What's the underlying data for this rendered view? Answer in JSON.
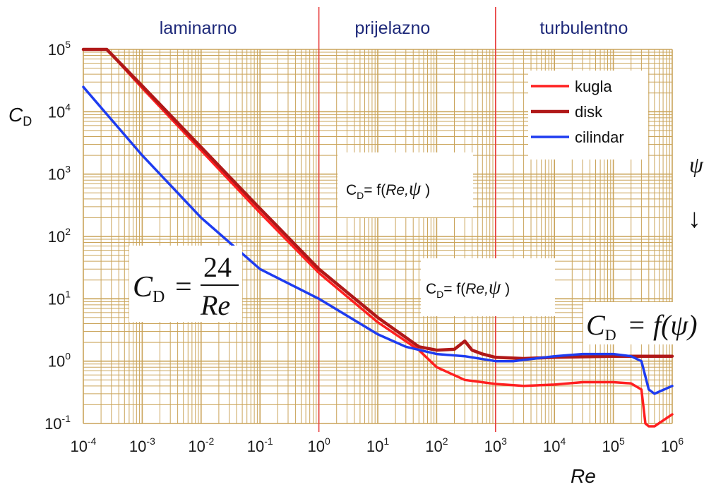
{
  "regions": [
    {
      "label": "laminarno",
      "center_logx": -2.05
    },
    {
      "label": "prijelazno",
      "center_logx": 1.25
    },
    {
      "label": "turbulentno",
      "center_logx": 4.5
    }
  ],
  "annotations": {
    "formula_mid": {
      "prefix": "C",
      "sub": "D",
      "body": "= f(",
      "italic": "Re,",
      "psi": "ψ",
      "close": " )"
    },
    "big_eq_stokes": {
      "lhs": "C",
      "lhs_sub": "D",
      "eq": "=",
      "num": "24",
      "den": "Re"
    },
    "big_eq_psi": {
      "lhs": "C",
      "lhs_sub": "D",
      "eq": "= f",
      "arg": "(ψ)"
    },
    "psi_arrow": {
      "symbol": "ψ",
      "arrow": "↓"
    }
  },
  "chart_data": {
    "type": "line",
    "xlabel": "Re",
    "ylabel": "C",
    "ylabel_sub": "D",
    "x_scale": "log",
    "y_scale": "log",
    "xlim": [
      0.0001,
      1000000
    ],
    "ylim": [
      0.1,
      100000
    ],
    "x_ticks": [
      {
        "base": "10",
        "exp": "-4"
      },
      {
        "base": "10",
        "exp": "-3"
      },
      {
        "base": "10",
        "exp": "-2"
      },
      {
        "base": "10",
        "exp": "-1"
      },
      {
        "base": "10",
        "exp": "0"
      },
      {
        "base": "10",
        "exp": "1"
      },
      {
        "base": "10",
        "exp": "2"
      },
      {
        "base": "10",
        "exp": "3"
      },
      {
        "base": "10",
        "exp": "4"
      },
      {
        "base": "10",
        "exp": "5"
      },
      {
        "base": "10",
        "exp": "6"
      }
    ],
    "y_ticks": [
      {
        "base": "10",
        "exp": "-1"
      },
      {
        "base": "10",
        "exp": "0"
      },
      {
        "base": "10",
        "exp": "1"
      },
      {
        "base": "10",
        "exp": "2"
      },
      {
        "base": "10",
        "exp": "3"
      },
      {
        "base": "10",
        "exp": "4"
      },
      {
        "base": "10",
        "exp": "5"
      }
    ],
    "grid": true,
    "grid_color": "#caa45a",
    "regime_boundaries": [
      1,
      1000
    ],
    "boundary_color": "#e84040",
    "legend_position": "top-right",
    "series": [
      {
        "name": "kugla",
        "color": "#ff2020",
        "width": 3.5,
        "x": [
          0.0001,
          0.00025,
          0.001,
          0.01,
          0.1,
          1,
          10,
          50,
          100,
          300,
          1000,
          3000,
          10000,
          30000,
          100000,
          200000,
          300000,
          350000,
          400000,
          500000,
          1000000
        ],
        "y": [
          120000,
          100000,
          24000,
          2400,
          240,
          26,
          4.2,
          1.5,
          0.8,
          0.5,
          0.43,
          0.4,
          0.42,
          0.46,
          0.46,
          0.44,
          0.35,
          0.1,
          0.09,
          0.09,
          0.14
        ]
      },
      {
        "name": "disk",
        "color": "#b01818",
        "width": 4.5,
        "x": [
          0.0001,
          0.00025,
          0.001,
          0.01,
          0.1,
          1,
          10,
          50,
          100,
          200,
          300,
          400,
          600,
          1000,
          3000,
          10000,
          100000,
          1000000
        ],
        "y": [
          140000,
          100000,
          26000,
          2700,
          280,
          30,
          5,
          1.7,
          1.5,
          1.55,
          2.1,
          1.5,
          1.3,
          1.15,
          1.1,
          1.15,
          1.2,
          1.2
        ]
      },
      {
        "name": "cilindar",
        "color": "#1e3cf0",
        "width": 3.5,
        "x": [
          0.0001,
          0.001,
          0.01,
          0.1,
          1,
          10,
          30,
          100,
          300,
          1000,
          2000,
          10000,
          30000,
          100000,
          200000,
          300000,
          400000,
          500000,
          1000000
        ],
        "y": [
          25000,
          2000,
          200,
          30,
          10,
          2.7,
          1.7,
          1.3,
          1.2,
          1.0,
          1.0,
          1.2,
          1.3,
          1.3,
          1.2,
          1.0,
          0.35,
          0.3,
          0.4
        ]
      }
    ]
  }
}
